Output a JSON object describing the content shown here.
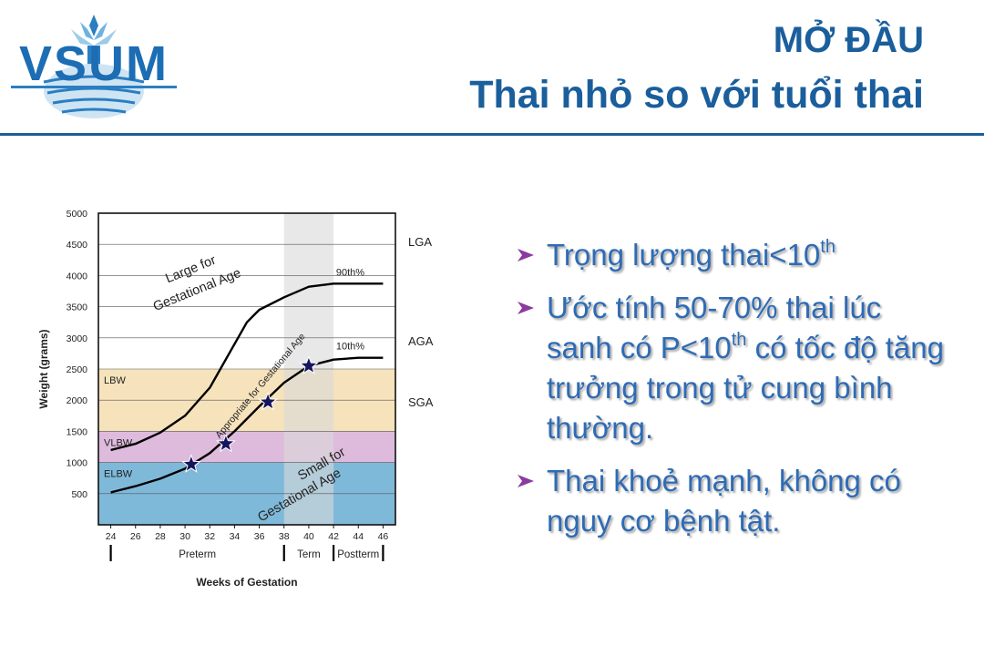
{
  "header": {
    "logo_text": "VSUM",
    "title_line1": "MỞ ĐẦU",
    "title_line2": "Thai nhỏ so với tuổi thai"
  },
  "colors": {
    "brand": "#1A5E9C",
    "bullet_text": "#2E6BB5",
    "bullet_arrow": "#8B3A9E",
    "band_lbw": "#F6E3BC",
    "band_vlbw": "#DEBBDD",
    "band_elbw": "#7FB9DA",
    "term_shade": "#D9D9D9",
    "star": "#15155E"
  },
  "bullets": [
    {
      "parts": [
        {
          "t": "Trọng lượng thai<10"
        },
        {
          "t": "th",
          "sup": true
        }
      ]
    },
    {
      "parts": [
        {
          "t": "Ước tính 50-70% thai lúc sanh có P<10"
        },
        {
          "t": "th",
          "sup": true
        },
        {
          "t": " có tốc độ tăng trưởng  trong tử cung bình thường."
        }
      ]
    },
    {
      "parts": [
        {
          "t": "Thai khoẻ mạnh, không có nguy cơ bệnh tật."
        }
      ]
    }
  ],
  "chart_data": {
    "type": "line",
    "xlabel": "Weeks of Gestation",
    "ylabel": "Weight (grams)",
    "xlim": [
      23,
      47
    ],
    "ylim": [
      0,
      5000
    ],
    "x_ticks": [
      24,
      26,
      28,
      30,
      32,
      34,
      36,
      38,
      40,
      42,
      44,
      46
    ],
    "y_ticks": [
      500,
      1000,
      1500,
      2000,
      2500,
      3000,
      3500,
      4000,
      4500,
      5000
    ],
    "grid": "horizontal",
    "bands": [
      {
        "label": "LBW",
        "y": [
          1500,
          2500
        ],
        "color": "#F6E3BC"
      },
      {
        "label": "VLBW",
        "y": [
          1000,
          1500
        ],
        "color": "#DEBBDD"
      },
      {
        "label": "ELBW",
        "y": [
          0,
          1000
        ],
        "color": "#7FB9DA"
      }
    ],
    "term_shading": {
      "x": [
        38,
        42
      ]
    },
    "series": [
      {
        "name": "90th%",
        "x": [
          24,
          26,
          28,
          30,
          32,
          34,
          35,
          36,
          38,
          40,
          42,
          44,
          46
        ],
        "y": [
          1200,
          1300,
          1480,
          1750,
          2200,
          2900,
          3250,
          3450,
          3650,
          3820,
          3870,
          3870,
          3870
        ]
      },
      {
        "name": "10th%",
        "x": [
          24,
          26,
          28,
          30,
          32,
          34,
          36,
          38,
          40,
          42,
          44,
          46
        ],
        "y": [
          520,
          620,
          740,
          900,
          1150,
          1500,
          1900,
          2280,
          2550,
          2650,
          2680,
          2680
        ]
      }
    ],
    "stars": [
      {
        "x": 30.5,
        "y": 970
      },
      {
        "x": 33.3,
        "y": 1300
      },
      {
        "x": 36.7,
        "y": 1970
      },
      {
        "x": 40,
        "y": 2550
      }
    ],
    "region_labels": {
      "lga": "LGA",
      "aga": "AGA",
      "sga": "SGA",
      "large": [
        "Large for",
        "Gestational Age"
      ],
      "appropriate": "Appropriate for Gestational Age",
      "small": [
        "Small for",
        "Gestational Age"
      ]
    },
    "periods": [
      {
        "label": "Preterm",
        "x": [
          24,
          38
        ]
      },
      {
        "label": "Term",
        "x": [
          38,
          42
        ]
      },
      {
        "label": "Postterm",
        "x": [
          42,
          46
        ]
      }
    ]
  }
}
